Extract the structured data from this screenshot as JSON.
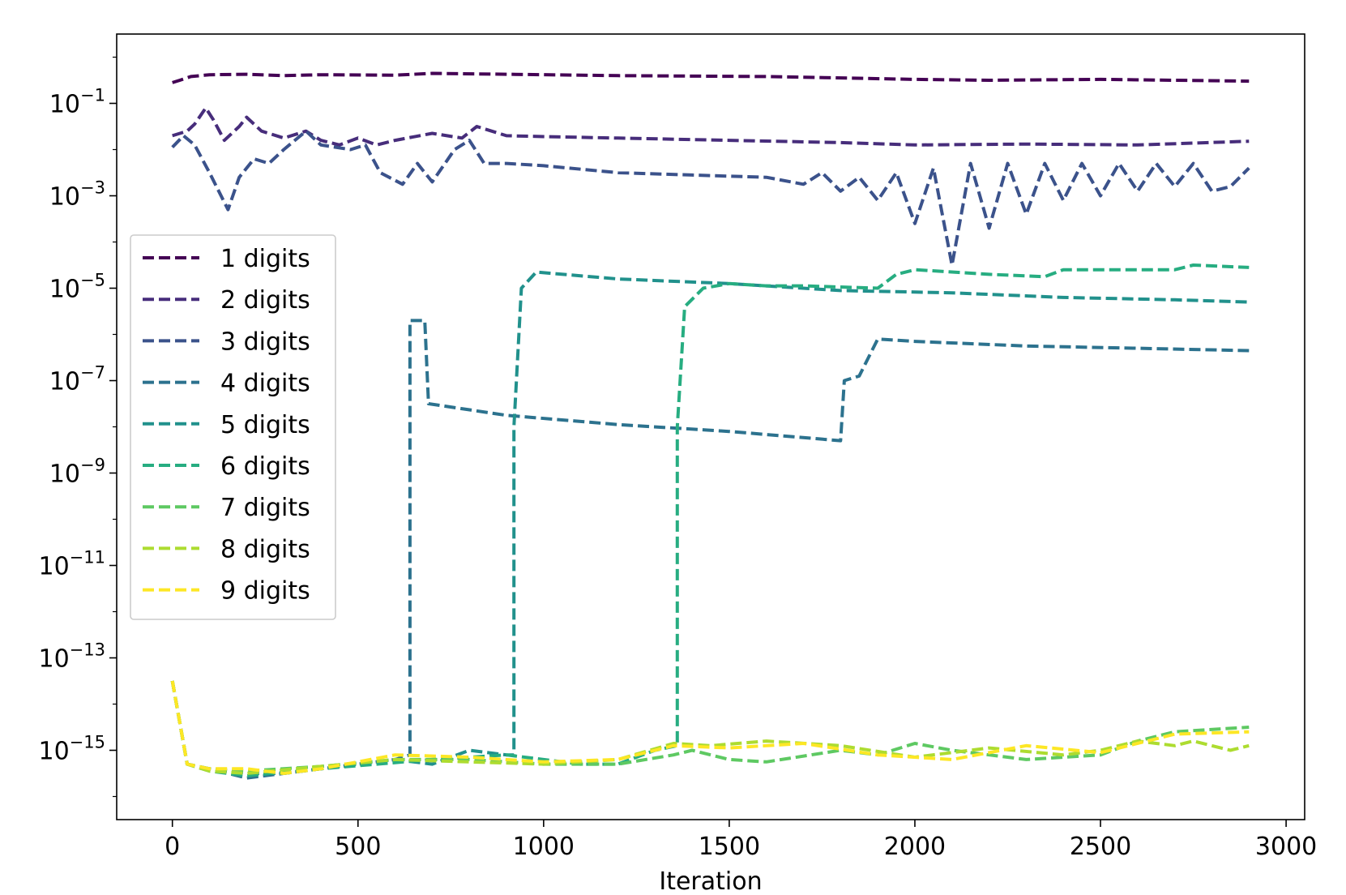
{
  "chart_data": {
    "type": "line",
    "title": "",
    "xlabel": "Iteration",
    "ylabel": "",
    "xlim": [
      -150,
      3050
    ],
    "ylim_exp": [
      -16.5,
      0.5
    ],
    "yscale": "log",
    "xticks": [
      0,
      500,
      1000,
      1500,
      2000,
      2500,
      3000
    ],
    "xtick_labels": [
      "0",
      "500",
      "1000",
      "1500",
      "2000",
      "2500",
      "3000"
    ],
    "yticks_exp": [
      -1,
      -3,
      -5,
      -7,
      -9,
      -11,
      -13,
      -15
    ],
    "ytick_base": "10",
    "ytick_exponents": [
      "−1",
      "−3",
      "−5",
      "−7",
      "−9",
      "−11",
      "−13",
      "−15"
    ],
    "legend_position": "center-left",
    "line_style": "dashed",
    "series": [
      {
        "name": "1 digits",
        "color": "#440154",
        "points": [
          [
            0,
            -0.55
          ],
          [
            20,
            -0.5
          ],
          [
            50,
            -0.42
          ],
          [
            100,
            -0.38
          ],
          [
            200,
            -0.37
          ],
          [
            300,
            -0.4
          ],
          [
            400,
            -0.38
          ],
          [
            600,
            -0.39
          ],
          [
            700,
            -0.35
          ],
          [
            900,
            -0.37
          ],
          [
            1200,
            -0.4
          ],
          [
            1600,
            -0.42
          ],
          [
            2000,
            -0.48
          ],
          [
            2200,
            -0.5
          ],
          [
            2500,
            -0.48
          ],
          [
            2900,
            -0.52
          ]
        ]
      },
      {
        "name": "2 digits",
        "color": "#472d7b",
        "points": [
          [
            0,
            -1.7
          ],
          [
            40,
            -1.6
          ],
          [
            60,
            -1.45
          ],
          [
            90,
            -1.1
          ],
          [
            110,
            -1.35
          ],
          [
            140,
            -1.8
          ],
          [
            180,
            -1.5
          ],
          [
            200,
            -1.3
          ],
          [
            240,
            -1.6
          ],
          [
            300,
            -1.75
          ],
          [
            360,
            -1.6
          ],
          [
            400,
            -1.8
          ],
          [
            450,
            -1.9
          ],
          [
            500,
            -1.75
          ],
          [
            550,
            -1.9
          ],
          [
            600,
            -1.8
          ],
          [
            700,
            -1.65
          ],
          [
            780,
            -1.75
          ],
          [
            820,
            -1.5
          ],
          [
            900,
            -1.7
          ],
          [
            1000,
            -1.72
          ],
          [
            1200,
            -1.75
          ],
          [
            1500,
            -1.8
          ],
          [
            1800,
            -1.85
          ],
          [
            2000,
            -1.9
          ],
          [
            2300,
            -1.88
          ],
          [
            2600,
            -1.9
          ],
          [
            2900,
            -1.82
          ]
        ]
      },
      {
        "name": "3 digits",
        "color": "#3b528b",
        "points": [
          [
            0,
            -1.95
          ],
          [
            30,
            -1.7
          ],
          [
            60,
            -1.9
          ],
          [
            100,
            -2.5
          ],
          [
            150,
            -3.3
          ],
          [
            180,
            -2.6
          ],
          [
            220,
            -2.2
          ],
          [
            260,
            -2.3
          ],
          [
            300,
            -2.0
          ],
          [
            360,
            -1.6
          ],
          [
            400,
            -1.9
          ],
          [
            480,
            -2.0
          ],
          [
            520,
            -1.9
          ],
          [
            560,
            -2.5
          ],
          [
            620,
            -2.75
          ],
          [
            660,
            -2.3
          ],
          [
            700,
            -2.7
          ],
          [
            760,
            -2.0
          ],
          [
            800,
            -1.8
          ],
          [
            840,
            -2.3
          ],
          [
            900,
            -2.3
          ],
          [
            1000,
            -2.35
          ],
          [
            1200,
            -2.5
          ],
          [
            1400,
            -2.55
          ],
          [
            1600,
            -2.6
          ],
          [
            1700,
            -2.75
          ],
          [
            1750,
            -2.5
          ],
          [
            1800,
            -2.9
          ],
          [
            1850,
            -2.6
          ],
          [
            1900,
            -3.1
          ],
          [
            1950,
            -2.5
          ],
          [
            2000,
            -3.6
          ],
          [
            2050,
            -2.4
          ],
          [
            2100,
            -4.5
          ],
          [
            2150,
            -2.3
          ],
          [
            2200,
            -3.7
          ],
          [
            2250,
            -2.3
          ],
          [
            2300,
            -3.4
          ],
          [
            2350,
            -2.3
          ],
          [
            2400,
            -3.1
          ],
          [
            2450,
            -2.3
          ],
          [
            2500,
            -3.0
          ],
          [
            2550,
            -2.3
          ],
          [
            2600,
            -2.9
          ],
          [
            2650,
            -2.3
          ],
          [
            2700,
            -2.8
          ],
          [
            2750,
            -2.3
          ],
          [
            2800,
            -2.9
          ],
          [
            2850,
            -2.8
          ],
          [
            2900,
            -2.4
          ]
        ]
      },
      {
        "name": "4 digits",
        "color": "#2c728e",
        "points": [
          [
            0,
            -13.5
          ],
          [
            40,
            -15.3
          ],
          [
            100,
            -15.4
          ],
          [
            200,
            -15.6
          ],
          [
            300,
            -15.5
          ],
          [
            400,
            -15.4
          ],
          [
            500,
            -15.3
          ],
          [
            600,
            -15.2
          ],
          [
            640,
            -15.1
          ],
          [
            640,
            -5.7
          ],
          [
            680,
            -5.7
          ],
          [
            690,
            -7.5
          ],
          [
            900,
            -7.75
          ],
          [
            1200,
            -7.95
          ],
          [
            1500,
            -8.1
          ],
          [
            1800,
            -8.3
          ],
          [
            1810,
            -7.0
          ],
          [
            1850,
            -6.9
          ],
          [
            1900,
            -6.1
          ],
          [
            2000,
            -6.15
          ],
          [
            2300,
            -6.25
          ],
          [
            2600,
            -6.3
          ],
          [
            2900,
            -6.35
          ]
        ]
      },
      {
        "name": "5 digits",
        "color": "#21918c",
        "points": [
          [
            0,
            -13.5
          ],
          [
            40,
            -15.3
          ],
          [
            100,
            -15.4
          ],
          [
            200,
            -15.5
          ],
          [
            300,
            -15.5
          ],
          [
            400,
            -15.4
          ],
          [
            600,
            -15.2
          ],
          [
            700,
            -15.3
          ],
          [
            800,
            -15.0
          ],
          [
            900,
            -15.1
          ],
          [
            920,
            -15.1
          ],
          [
            920,
            -8.0
          ],
          [
            940,
            -5.0
          ],
          [
            980,
            -4.65
          ],
          [
            1200,
            -4.8
          ],
          [
            1500,
            -4.9
          ],
          [
            1800,
            -5.05
          ],
          [
            2100,
            -5.1
          ],
          [
            2400,
            -5.2
          ],
          [
            2700,
            -5.25
          ],
          [
            2900,
            -5.3
          ]
        ]
      },
      {
        "name": "6 digits",
        "color": "#27ad81",
        "points": [
          [
            0,
            -13.5
          ],
          [
            40,
            -15.3
          ],
          [
            100,
            -15.45
          ],
          [
            200,
            -15.55
          ],
          [
            400,
            -15.4
          ],
          [
            700,
            -15.2
          ],
          [
            900,
            -15.1
          ],
          [
            1100,
            -15.3
          ],
          [
            1200,
            -15.3
          ],
          [
            1300,
            -15.0
          ],
          [
            1360,
            -14.9
          ],
          [
            1360,
            -8.0
          ],
          [
            1380,
            -5.4
          ],
          [
            1430,
            -5.0
          ],
          [
            1500,
            -4.9
          ],
          [
            1600,
            -4.95
          ],
          [
            1700,
            -4.95
          ],
          [
            1900,
            -5.0
          ],
          [
            1950,
            -4.7
          ],
          [
            2000,
            -4.6
          ],
          [
            2200,
            -4.7
          ],
          [
            2350,
            -4.75
          ],
          [
            2400,
            -4.6
          ],
          [
            2700,
            -4.6
          ],
          [
            2750,
            -4.5
          ],
          [
            2900,
            -4.55
          ]
        ]
      },
      {
        "name": "7 digits",
        "color": "#5ec962",
        "points": [
          [
            0,
            -13.5
          ],
          [
            40,
            -15.3
          ],
          [
            100,
            -15.4
          ],
          [
            200,
            -15.45
          ],
          [
            400,
            -15.35
          ],
          [
            600,
            -15.2
          ],
          [
            800,
            -15.2
          ],
          [
            1000,
            -15.3
          ],
          [
            1200,
            -15.3
          ],
          [
            1350,
            -15.1
          ],
          [
            1400,
            -15.0
          ],
          [
            1500,
            -15.2
          ],
          [
            1600,
            -15.25
          ],
          [
            1800,
            -15.0
          ],
          [
            1900,
            -15.1
          ],
          [
            2000,
            -14.85
          ],
          [
            2100,
            -15.0
          ],
          [
            2200,
            -15.1
          ],
          [
            2300,
            -15.2
          ],
          [
            2500,
            -15.1
          ],
          [
            2600,
            -14.8
          ],
          [
            2700,
            -14.6
          ],
          [
            2900,
            -14.5
          ]
        ]
      },
      {
        "name": "8 digits",
        "color": "#addc30",
        "points": [
          [
            0,
            -13.5
          ],
          [
            40,
            -15.3
          ],
          [
            100,
            -15.45
          ],
          [
            200,
            -15.5
          ],
          [
            400,
            -15.35
          ],
          [
            600,
            -15.2
          ],
          [
            800,
            -15.25
          ],
          [
            1000,
            -15.3
          ],
          [
            1200,
            -15.2
          ],
          [
            1350,
            -14.85
          ],
          [
            1450,
            -14.9
          ],
          [
            1600,
            -14.8
          ],
          [
            1800,
            -14.9
          ],
          [
            2000,
            -15.15
          ],
          [
            2200,
            -14.95
          ],
          [
            2400,
            -15.1
          ],
          [
            2500,
            -15.0
          ],
          [
            2600,
            -14.8
          ],
          [
            2700,
            -14.9
          ],
          [
            2750,
            -14.8
          ],
          [
            2850,
            -15.0
          ],
          [
            2900,
            -14.9
          ]
        ]
      },
      {
        "name": "9 digits",
        "color": "#fde725",
        "points": [
          [
            0,
            -13.5
          ],
          [
            40,
            -15.3
          ],
          [
            100,
            -15.4
          ],
          [
            200,
            -15.4
          ],
          [
            300,
            -15.5
          ],
          [
            400,
            -15.4
          ],
          [
            600,
            -15.1
          ],
          [
            800,
            -15.15
          ],
          [
            1000,
            -15.25
          ],
          [
            1200,
            -15.2
          ],
          [
            1350,
            -14.9
          ],
          [
            1500,
            -14.95
          ],
          [
            1700,
            -14.85
          ],
          [
            1900,
            -15.1
          ],
          [
            2100,
            -15.2
          ],
          [
            2300,
            -14.9
          ],
          [
            2500,
            -15.05
          ],
          [
            2700,
            -14.65
          ],
          [
            2900,
            -14.6
          ]
        ]
      }
    ]
  }
}
